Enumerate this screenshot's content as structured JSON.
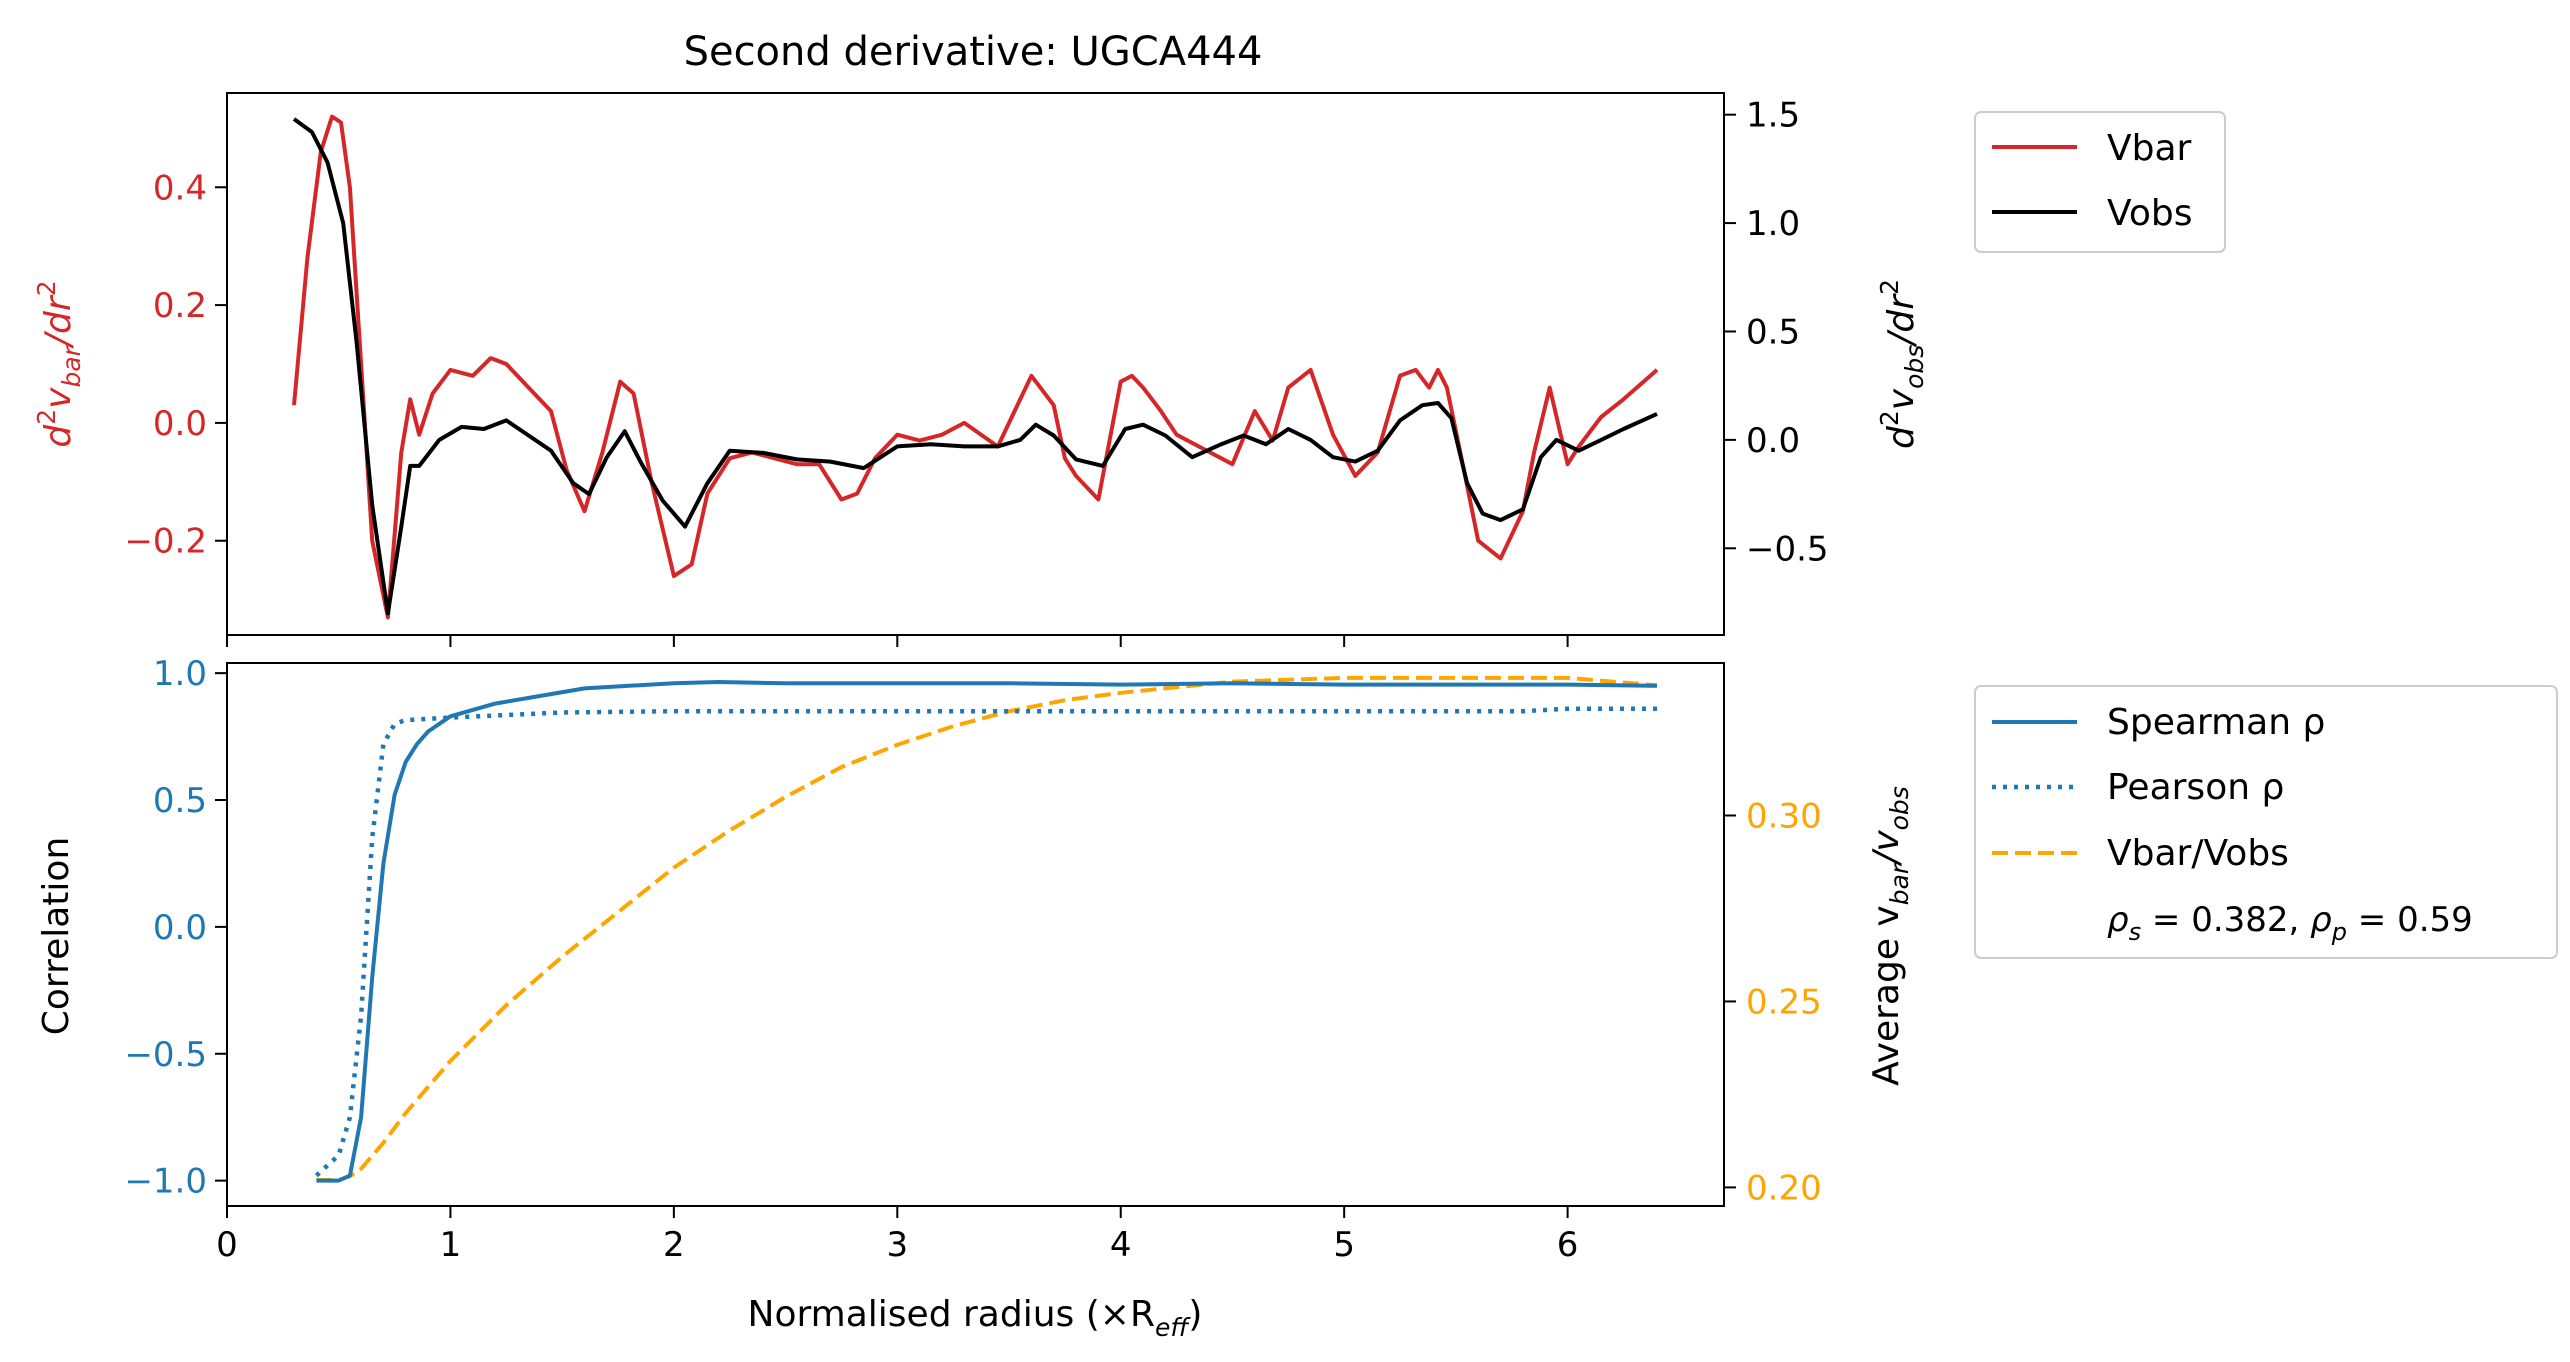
{
  "title": "Second derivative: UGCA444",
  "colors": {
    "vbar": "#d62728",
    "vobs": "#000000",
    "spearman": "#1f77b4",
    "pearson": "#1f77b4",
    "ratio": "#ffa500",
    "axis": "#000000"
  },
  "legend_top": {
    "items": [
      "Vbar",
      "Vobs"
    ]
  },
  "legend_bottom": {
    "items": [
      "Spearman ρ",
      "Pearson ρ",
      "Vbar/Vobs"
    ],
    "stats": {
      "sym_s": "ρ",
      "sub_s": "s",
      "val_s": " = 0.382, ",
      "sym_p": "ρ",
      "sub_p": "p",
      "val_p": " = 0.59"
    }
  },
  "labels": {
    "top_left": {
      "a": "d",
      "a_sup": "2",
      "b": "v",
      "b_sub": "bar",
      "c": "/dr",
      "c_sup": "2"
    },
    "top_right": {
      "a": "d",
      "a_sup": "2",
      "b": "v",
      "b_sub": "obs",
      "c": "/dr",
      "c_sup": "2"
    },
    "bottom_left": "Correlation",
    "bottom_right": {
      "a": "Average v",
      "a_sub": "bar",
      "b": "/v",
      "b_sub": "obs"
    },
    "xlabel": {
      "a": "Normalised radius (×R",
      "a_sub": "eff",
      "b": ")"
    }
  },
  "chart_data": [
    {
      "type": "line",
      "title": "Second derivative: UGCA444",
      "xlim": [
        0,
        6.7
      ],
      "ylim_left": [
        -0.36,
        0.56
      ],
      "ylim_right": [
        -0.9,
        1.6
      ],
      "yticks_left": [
        -0.2,
        0.0,
        0.2,
        0.4
      ],
      "yticks_left_labels": [
        "−0.2",
        "0.0",
        "0.2",
        "0.4"
      ],
      "yticks_right": [
        -0.5,
        0.0,
        0.5,
        1.0,
        1.5
      ],
      "yticks_right_labels": [
        "−0.5",
        "0.0",
        "0.5",
        "1.0",
        "1.5"
      ],
      "series": [
        {
          "name": "Vbar",
          "axis": "left",
          "x": [
            0.3,
            0.36,
            0.42,
            0.47,
            0.51,
            0.55,
            0.6,
            0.65,
            0.72,
            0.78,
            0.82,
            0.86,
            0.92,
            1.0,
            1.1,
            1.18,
            1.25,
            1.35,
            1.45,
            1.52,
            1.6,
            1.68,
            1.76,
            1.82,
            1.9,
            2.0,
            2.08,
            2.15,
            2.25,
            2.35,
            2.45,
            2.55,
            2.65,
            2.75,
            2.82,
            2.9,
            3.0,
            3.1,
            3.2,
            3.3,
            3.45,
            3.55,
            3.6,
            3.7,
            3.75,
            3.8,
            3.9,
            4.0,
            4.05,
            4.1,
            4.18,
            4.25,
            4.35,
            4.5,
            4.6,
            4.68,
            4.75,
            4.85,
            4.95,
            5.05,
            5.15,
            5.25,
            5.32,
            5.38,
            5.42,
            5.46,
            5.52,
            5.6,
            5.7,
            5.8,
            5.85,
            5.92,
            6.0,
            6.05,
            6.15,
            6.25,
            6.4
          ],
          "y": [
            0.03,
            0.28,
            0.46,
            0.52,
            0.51,
            0.4,
            0.1,
            -0.2,
            -0.33,
            -0.05,
            0.04,
            -0.02,
            0.05,
            0.09,
            0.08,
            0.11,
            0.1,
            0.06,
            0.02,
            -0.08,
            -0.15,
            -0.05,
            0.07,
            0.05,
            -0.1,
            -0.26,
            -0.24,
            -0.12,
            -0.06,
            -0.05,
            -0.06,
            -0.07,
            -0.07,
            -0.13,
            -0.12,
            -0.06,
            -0.02,
            -0.03,
            -0.02,
            0.0,
            -0.04,
            0.04,
            0.08,
            0.03,
            -0.06,
            -0.09,
            -0.13,
            0.07,
            0.08,
            0.06,
            0.02,
            -0.02,
            -0.04,
            -0.07,
            0.02,
            -0.03,
            0.06,
            0.09,
            -0.02,
            -0.09,
            -0.05,
            0.08,
            0.09,
            0.06,
            0.09,
            0.06,
            -0.05,
            -0.2,
            -0.23,
            -0.15,
            -0.05,
            0.06,
            -0.07,
            -0.04,
            0.01,
            0.04,
            0.09
          ]
        },
        {
          "name": "Vobs",
          "axis": "right",
          "x": [
            0.3,
            0.38,
            0.45,
            0.52,
            0.58,
            0.65,
            0.72,
            0.78,
            0.82,
            0.86,
            0.95,
            1.05,
            1.15,
            1.25,
            1.35,
            1.45,
            1.55,
            1.62,
            1.7,
            1.78,
            1.85,
            1.95,
            2.05,
            2.15,
            2.25,
            2.4,
            2.55,
            2.7,
            2.85,
            3.0,
            3.15,
            3.3,
            3.45,
            3.55,
            3.62,
            3.7,
            3.8,
            3.92,
            4.02,
            4.1,
            4.2,
            4.32,
            4.45,
            4.55,
            4.65,
            4.75,
            4.85,
            4.95,
            5.05,
            5.15,
            5.25,
            5.35,
            5.42,
            5.48,
            5.55,
            5.62,
            5.7,
            5.8,
            5.88,
            5.95,
            6.05,
            6.15,
            6.25,
            6.4
          ],
          "y": [
            1.48,
            1.42,
            1.28,
            1.0,
            0.45,
            -0.3,
            -0.8,
            -0.4,
            -0.12,
            -0.12,
            0.0,
            0.06,
            0.05,
            0.09,
            0.02,
            -0.05,
            -0.2,
            -0.25,
            -0.08,
            0.04,
            -0.1,
            -0.28,
            -0.4,
            -0.2,
            -0.05,
            -0.06,
            -0.09,
            -0.1,
            -0.13,
            -0.03,
            -0.02,
            -0.03,
            -0.03,
            0.0,
            0.07,
            0.02,
            -0.09,
            -0.12,
            0.05,
            0.07,
            0.02,
            -0.08,
            -0.02,
            0.02,
            -0.02,
            0.05,
            0.0,
            -0.08,
            -0.1,
            -0.05,
            0.09,
            0.16,
            0.17,
            0.1,
            -0.2,
            -0.34,
            -0.37,
            -0.32,
            -0.08,
            0.0,
            -0.05,
            0.0,
            0.05,
            0.12
          ]
        }
      ]
    },
    {
      "type": "line",
      "xlabel": "Normalised radius (×R_eff)",
      "ylabel": "Correlation",
      "xlim": [
        0,
        6.7
      ],
      "xticks": [
        0,
        1,
        2,
        3,
        4,
        5,
        6
      ],
      "ylim_left": [
        -1.1,
        1.04
      ],
      "ylim_right": [
        0.195,
        0.341
      ],
      "yticks_left": [
        -1.0,
        -0.5,
        0.0,
        0.5,
        1.0
      ],
      "yticks_left_labels": [
        "−1.0",
        "−0.5",
        "0.0",
        "0.5",
        "1.0"
      ],
      "yticks_right": [
        0.2,
        0.25,
        0.3
      ],
      "yticks_right_labels": [
        "0.20",
        "0.25",
        "0.30"
      ],
      "series": [
        {
          "name": "Spearman ρ",
          "axis": "left",
          "x": [
            0.4,
            0.5,
            0.55,
            0.6,
            0.65,
            0.7,
            0.75,
            0.8,
            0.85,
            0.9,
            1.0,
            1.2,
            1.4,
            1.6,
            1.8,
            2.0,
            2.2,
            2.5,
            3.0,
            3.5,
            4.0,
            4.5,
            5.0,
            5.5,
            6.0,
            6.4
          ],
          "y": [
            -1.0,
            -1.0,
            -0.98,
            -0.75,
            -0.2,
            0.25,
            0.52,
            0.65,
            0.72,
            0.77,
            0.83,
            0.88,
            0.91,
            0.94,
            0.95,
            0.96,
            0.965,
            0.96,
            0.96,
            0.96,
            0.955,
            0.96,
            0.955,
            0.955,
            0.955,
            0.95
          ]
        },
        {
          "name": "Pearson ρ",
          "axis": "left",
          "x": [
            0.4,
            0.5,
            0.55,
            0.6,
            0.65,
            0.7,
            0.75,
            0.8,
            0.9,
            1.0,
            1.5,
            2.0,
            3.0,
            4.0,
            5.0,
            5.8,
            6.0,
            6.4
          ],
          "y": [
            -0.98,
            -0.9,
            -0.75,
            -0.35,
            0.35,
            0.72,
            0.8,
            0.815,
            0.82,
            0.825,
            0.845,
            0.85,
            0.85,
            0.85,
            0.85,
            0.85,
            0.86,
            0.86
          ]
        },
        {
          "name": "Vbar/Vobs",
          "axis": "right",
          "x": [
            0.4,
            0.5,
            0.55,
            0.6,
            0.7,
            0.8,
            1.0,
            1.25,
            1.5,
            1.75,
            2.0,
            2.25,
            2.5,
            2.75,
            3.0,
            3.25,
            3.5,
            3.75,
            4.0,
            4.5,
            5.0,
            5.5,
            6.0,
            6.4
          ],
          "y": [
            0.202,
            0.202,
            0.203,
            0.205,
            0.212,
            0.22,
            0.234,
            0.249,
            0.262,
            0.274,
            0.286,
            0.296,
            0.305,
            0.313,
            0.319,
            0.324,
            0.328,
            0.331,
            0.333,
            0.336,
            0.337,
            0.337,
            0.337,
            0.335
          ]
        }
      ]
    }
  ]
}
